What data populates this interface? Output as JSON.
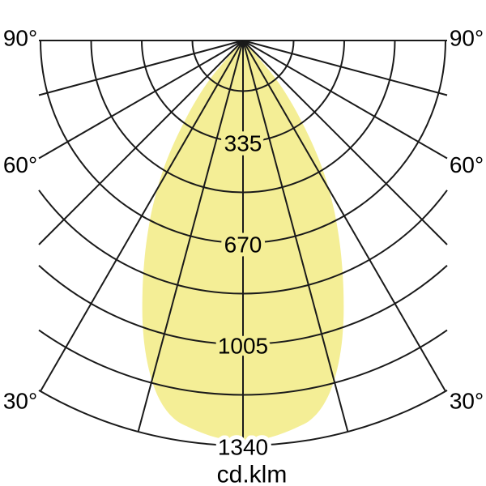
{
  "diagram": {
    "unit_label": "cd.klm"
  },
  "chart_data": {
    "type": "polar_photometric",
    "title": "",
    "unit": "cd.klm",
    "description": "Luminous intensity distribution curve, symmetric about vertical axis",
    "c_plane_ray_step_deg": 15,
    "angle_labels_deg": [
      90,
      60,
      30
    ],
    "angle_labels_text": [
      "90°",
      "60°",
      "30°"
    ],
    "angle_labels_sides": [
      "left",
      "right"
    ],
    "radial_tick_values": [
      335,
      670,
      1005,
      1340
    ],
    "radial_rings": 8,
    "radial_max": 1340,
    "grid_on": true,
    "colors": {
      "grid": "#1a1a1a",
      "lobe_fill": "#F4EE96",
      "text": "#000000",
      "background": "#ffffff"
    },
    "curve_symmetric": true,
    "curve": {
      "angles_deg": [
        0,
        2,
        4,
        6,
        8,
        10,
        12,
        14,
        16,
        18,
        20,
        22,
        24,
        26,
        28,
        30,
        32,
        34,
        36,
        38,
        40,
        41.5,
        43
      ],
      "intensity_cd_per_klm": [
        1327,
        1324,
        1316,
        1305,
        1292,
        1276,
        1244,
        1195,
        1131,
        1056,
        973,
        887,
        804,
        724,
        646,
        568,
        490,
        407,
        327,
        257,
        188,
        113,
        0
      ]
    }
  }
}
